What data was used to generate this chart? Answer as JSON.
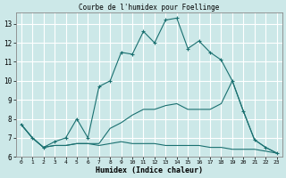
{
  "title": "Courbe de l'humidex pour Foellinge",
  "xlabel": "Humidex (Indice chaleur)",
  "background_color": "#cce8e8",
  "grid_color": "#ffffff",
  "line_color": "#1a7070",
  "xlim": [
    -0.5,
    23.5
  ],
  "ylim": [
    6,
    13.6
  ],
  "yticks": [
    6,
    7,
    8,
    9,
    10,
    11,
    12,
    13
  ],
  "xticks": [
    0,
    1,
    2,
    3,
    4,
    5,
    6,
    7,
    8,
    9,
    10,
    11,
    12,
    13,
    14,
    15,
    16,
    17,
    18,
    19,
    20,
    21,
    22,
    23
  ],
  "series": [
    {
      "x": [
        0,
        1,
        2,
        3,
        4,
        5,
        6,
        7,
        8,
        9,
        10,
        11,
        12,
        13,
        14,
        15,
        16,
        17,
        18,
        19,
        20,
        21,
        22,
        23
      ],
      "y": [
        7.7,
        7.0,
        6.5,
        6.8,
        7.0,
        8.0,
        7.0,
        9.7,
        10.0,
        11.5,
        11.4,
        12.6,
        12.0,
        13.2,
        13.3,
        11.7,
        12.1,
        11.5,
        11.1,
        10.0,
        8.4,
        6.9,
        6.5,
        6.2
      ],
      "marker": "+"
    },
    {
      "x": [
        0,
        1,
        2,
        3,
        4,
        5,
        6,
        7,
        8,
        9,
        10,
        11,
        12,
        13,
        14,
        15,
        16,
        17,
        18,
        19,
        20,
        21,
        22,
        23
      ],
      "y": [
        7.7,
        7.0,
        6.5,
        6.6,
        6.6,
        6.7,
        6.7,
        6.7,
        7.5,
        7.8,
        8.2,
        8.5,
        8.5,
        8.7,
        8.8,
        8.5,
        8.5,
        8.5,
        8.8,
        10.0,
        8.4,
        6.9,
        6.5,
        6.2
      ],
      "marker": null
    },
    {
      "x": [
        0,
        1,
        2,
        3,
        4,
        5,
        6,
        7,
        8,
        9,
        10,
        11,
        12,
        13,
        14,
        15,
        16,
        17,
        18,
        19,
        20,
        21,
        22,
        23
      ],
      "y": [
        7.7,
        7.0,
        6.5,
        6.6,
        6.6,
        6.7,
        6.7,
        6.6,
        6.7,
        6.8,
        6.7,
        6.7,
        6.7,
        6.6,
        6.6,
        6.6,
        6.6,
        6.5,
        6.5,
        6.4,
        6.4,
        6.4,
        6.3,
        6.2
      ],
      "marker": null
    }
  ]
}
